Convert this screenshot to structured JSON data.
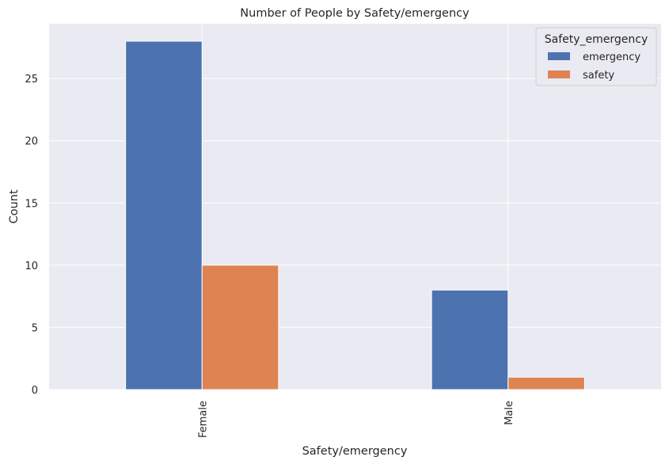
{
  "chart_data": {
    "type": "bar",
    "title": "Number of People by Safety/emergency",
    "xlabel": "Safety/emergency",
    "ylabel": "Count",
    "categories": [
      "Female",
      "Male"
    ],
    "series": [
      {
        "name": "emergency",
        "values": [
          28,
          8
        ],
        "color": "#4c72b0"
      },
      {
        "name": "safety",
        "values": [
          10,
          1
        ],
        "color": "#dd8452"
      }
    ],
    "ylim": [
      0,
      29.4
    ],
    "yticks": [
      0,
      5,
      10,
      15,
      20,
      25
    ],
    "grid": true,
    "legend": {
      "title": "Safety_emergency",
      "position": "top-right"
    },
    "colors": {
      "background": "#eaeaf2",
      "grid": "#ffffff"
    }
  }
}
